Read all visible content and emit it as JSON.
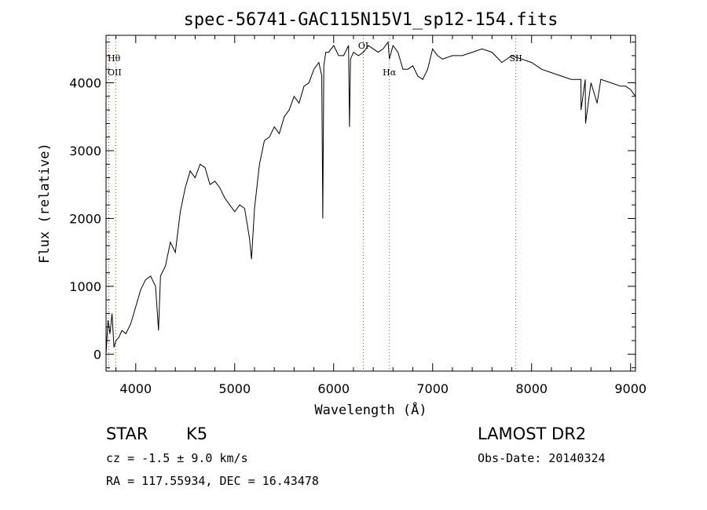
{
  "chart_data": {
    "type": "line",
    "title": "spec-56741-GAC115N15V1_sp12-154.fits",
    "xlabel": "Wavelength (Å)",
    "ylabel": "Flux (relative)",
    "xlim": [
      3700,
      9050
    ],
    "ylim": [
      -250,
      4700
    ],
    "x_ticks": [
      4000,
      5000,
      6000,
      7000,
      8000,
      9000
    ],
    "y_ticks": [
      0,
      1000,
      2000,
      3000,
      4000
    ],
    "x_tick_labels": [
      "4000",
      "5000",
      "6000",
      "7000",
      "8000",
      "9000"
    ],
    "y_tick_labels": [
      "0",
      "1000",
      "2000",
      "3000",
      "4000"
    ],
    "series": [
      {
        "x": [
          3700,
          3720,
          3740,
          3760,
          3780,
          3800,
          3830,
          3860,
          3900,
          3950,
          4000,
          4050,
          4100,
          4150,
          4200,
          4230,
          4250,
          4300,
          4350,
          4400,
          4450,
          4500,
          4550,
          4600,
          4650,
          4700,
          4750,
          4800,
          4850,
          4900,
          4950,
          5000,
          5050,
          5100,
          5150,
          5170,
          5190,
          5200,
          5250,
          5300,
          5350,
          5400,
          5450,
          5500,
          5550,
          5600,
          5650,
          5700,
          5750,
          5800,
          5850,
          5880,
          5890,
          5900,
          5920,
          5950,
          6000,
          6050,
          6100,
          6150,
          6160,
          6170,
          6200,
          6250,
          6300,
          6350,
          6400,
          6450,
          6500,
          6550,
          6563,
          6600,
          6650,
          6700,
          6750,
          6800,
          6850,
          6900,
          6950,
          7000,
          7050,
          7100,
          7200,
          7300,
          7400,
          7500,
          7600,
          7700,
          7800,
          7900,
          8000,
          8100,
          8200,
          8300,
          8400,
          8498,
          8500,
          8542,
          8545,
          8600,
          8662,
          8700,
          8800,
          8900,
          8950,
          9000,
          9050
        ],
        "y": [
          0,
          500,
          300,
          600,
          100,
          200,
          250,
          350,
          300,
          450,
          700,
          950,
          1100,
          1150,
          1000,
          350,
          1150,
          1300,
          1650,
          1500,
          2100,
          2450,
          2700,
          2600,
          2800,
          2750,
          2500,
          2550,
          2450,
          2300,
          2200,
          2100,
          2200,
          2150,
          1700,
          1400,
          1900,
          2150,
          2800,
          3150,
          3200,
          3350,
          3250,
          3500,
          3600,
          3800,
          3700,
          3950,
          4000,
          4200,
          4300,
          4100,
          2000,
          4250,
          4450,
          4450,
          4550,
          4400,
          4400,
          4550,
          3350,
          4350,
          4450,
          4400,
          4450,
          4550,
          4500,
          4450,
          4500,
          4600,
          4350,
          4550,
          4450,
          4200,
          4200,
          4250,
          4100,
          4050,
          4200,
          4500,
          4400,
          4350,
          4400,
          4400,
          4450,
          4500,
          4450,
          4300,
          4400,
          4350,
          4300,
          4200,
          4150,
          4100,
          4050,
          4050,
          3600,
          4050,
          3400,
          4000,
          3700,
          4050,
          4000,
          3950,
          3950,
          3900,
          3800
        ]
      }
    ],
    "spectral_lines": [
      {
        "label": "Hθ",
        "x": 3798
      },
      {
        "label": "OII",
        "x": 3728
      },
      {
        "label": "OI",
        "x": 6300
      },
      {
        "label": "Hα",
        "x": 6563
      },
      {
        "label": "SII",
        "x": 7840
      }
    ],
    "grid": false,
    "legend": "none"
  },
  "info": {
    "object_type": "STAR",
    "subclass": "K5",
    "redshift": "cz = -1.5 ± 9.0 km/s",
    "coords": "RA = 117.55934, DEC =  16.43478",
    "survey": "LAMOST DR2",
    "obs_date": "Obs-Date: 20140324"
  },
  "colors": {
    "spectrum": "#000000",
    "line_markers": "#cc3333",
    "axes": "#000000",
    "background": "#ffffff"
  }
}
